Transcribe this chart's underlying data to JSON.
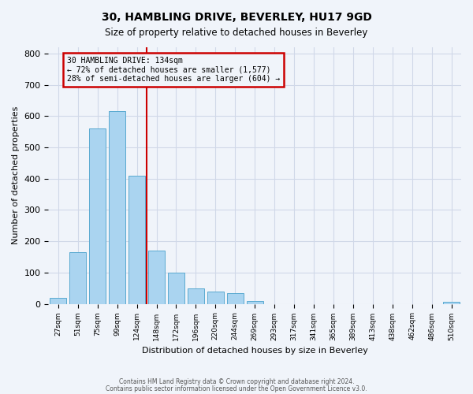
{
  "title": "30, HAMBLING DRIVE, BEVERLEY, HU17 9GD",
  "subtitle": "Size of property relative to detached houses in Beverley",
  "xlabel": "Distribution of detached houses by size in Beverley",
  "ylabel": "Number of detached properties",
  "footer_line1": "Contains HM Land Registry data © Crown copyright and database right 2024.",
  "footer_line2": "Contains public sector information licensed under the Open Government Licence v3.0.",
  "bin_labels": [
    "27sqm",
    "51sqm",
    "75sqm",
    "99sqm",
    "124sqm",
    "148sqm",
    "172sqm",
    "196sqm",
    "220sqm",
    "244sqm",
    "269sqm",
    "293sqm",
    "317sqm",
    "341sqm",
    "365sqm",
    "389sqm",
    "413sqm",
    "438sqm",
    "462sqm",
    "486sqm",
    "510sqm"
  ],
  "bar_values": [
    20,
    165,
    560,
    615,
    410,
    170,
    100,
    50,
    40,
    33,
    10,
    0,
    0,
    0,
    0,
    0,
    0,
    0,
    0,
    0,
    7
  ],
  "bar_color": "#aad4f0",
  "bar_edge_color": "#5aaad0",
  "grid_color": "#d0d8e8",
  "background_color": "#f0f4fa",
  "annotation_box_color": "#cc0000",
  "vline_color": "#cc0000",
  "vline_x": 4.5,
  "annotation_title": "30 HAMBLING DRIVE: 134sqm",
  "annotation_line2": "← 72% of detached houses are smaller (1,577)",
  "annotation_line3": "28% of semi-detached houses are larger (604) →",
  "ylim": [
    0,
    820
  ],
  "yticks": [
    0,
    100,
    200,
    300,
    400,
    500,
    600,
    700,
    800
  ]
}
